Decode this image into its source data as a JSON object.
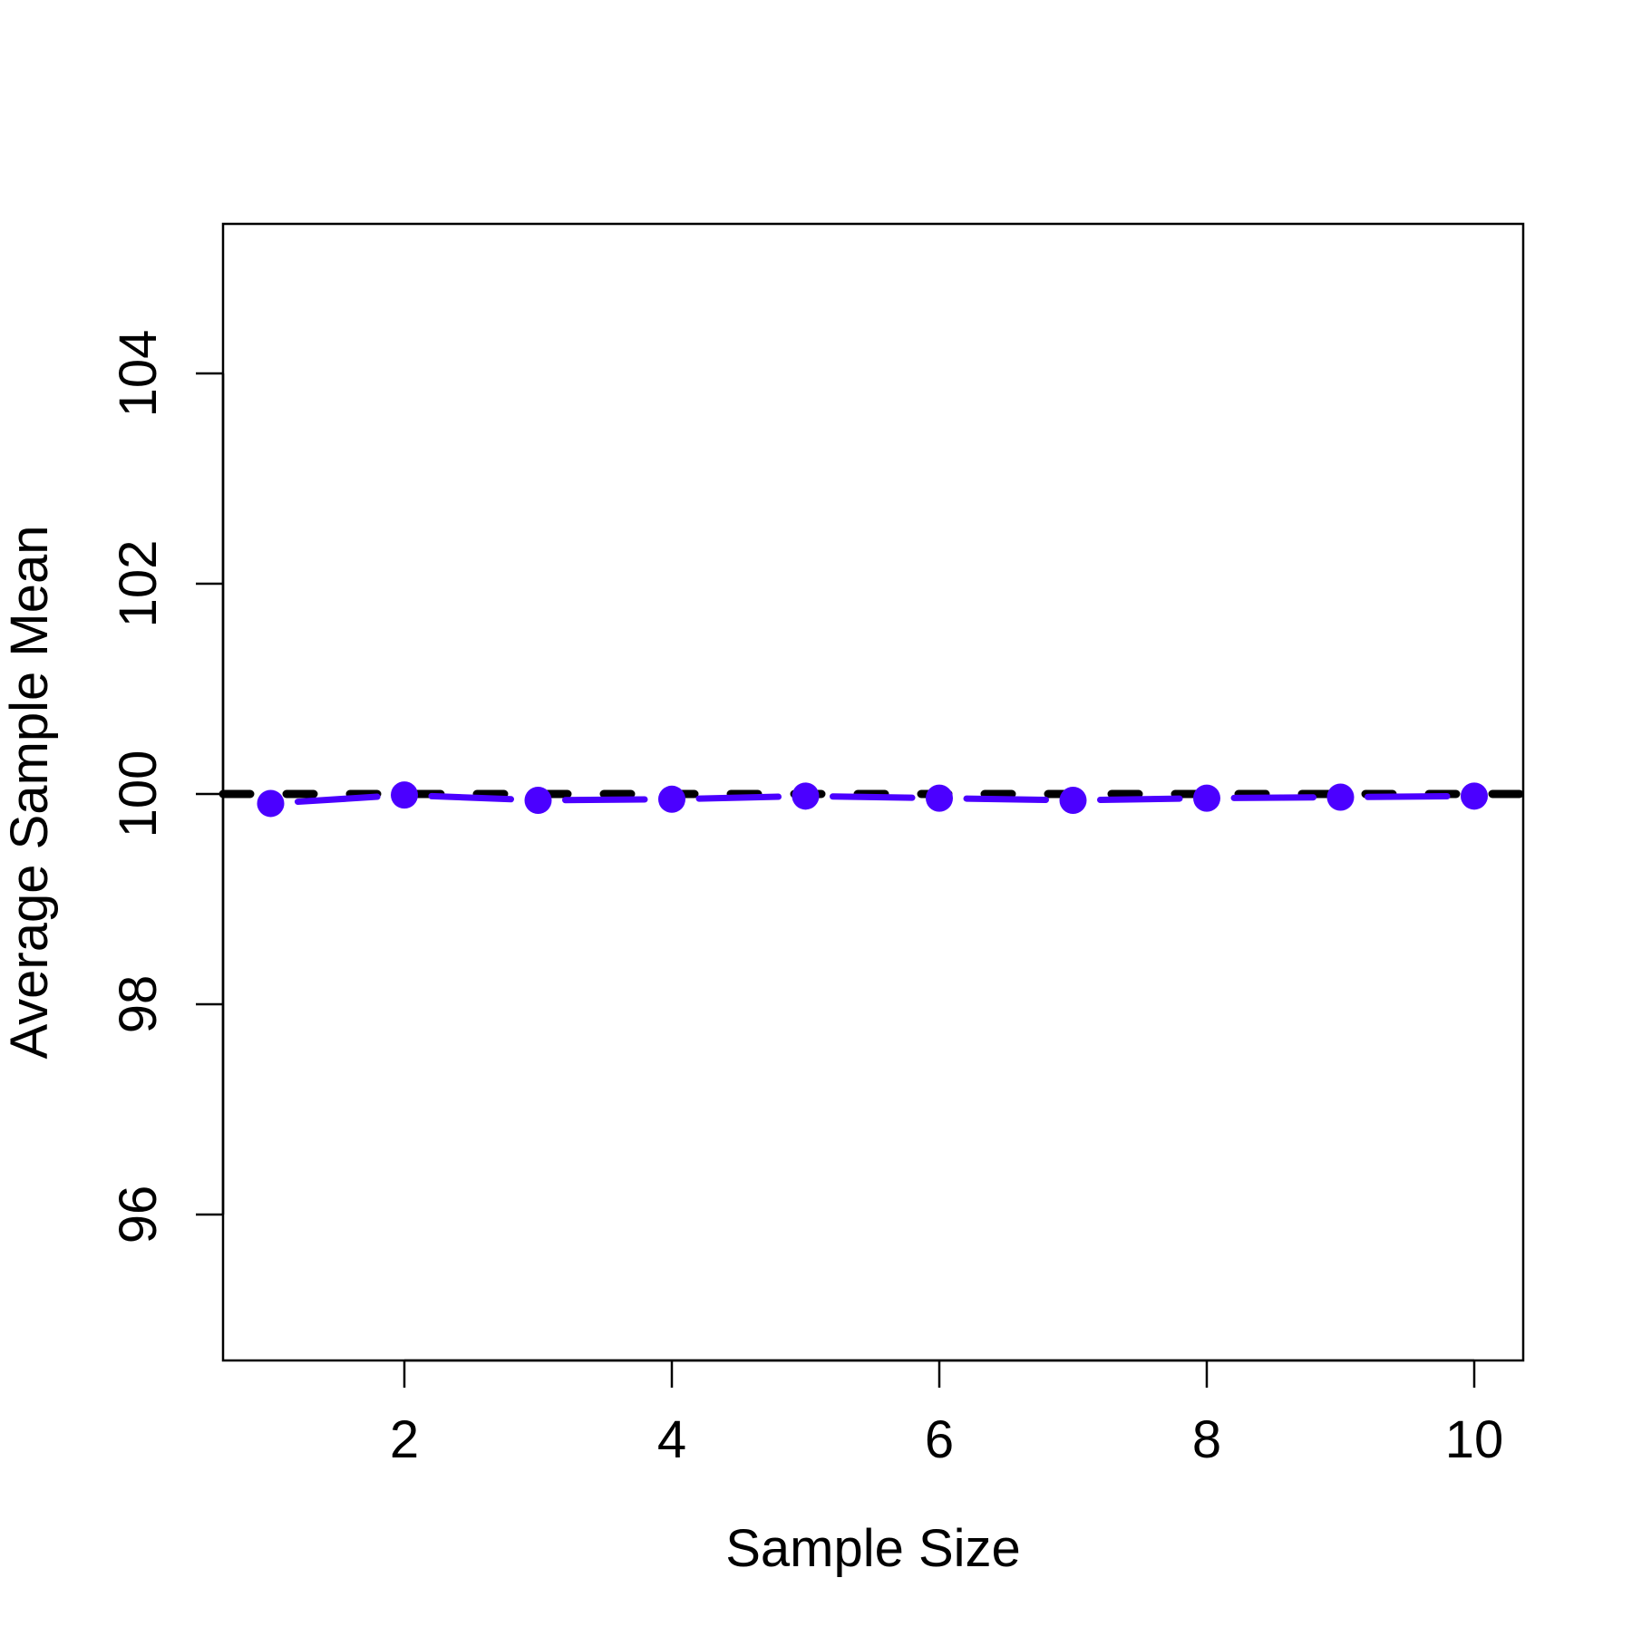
{
  "chart_data": {
    "type": "line",
    "title": "",
    "xlabel": "Sample Size",
    "ylabel": "Average Sample Mean",
    "x": [
      1,
      2,
      3,
      4,
      5,
      6,
      7,
      8,
      9,
      10
    ],
    "series": [
      {
        "name": "Average Sample Mean",
        "color": "#4B00FF",
        "style": "line+points",
        "values": [
          99.91,
          99.99,
          99.94,
          99.95,
          99.98,
          99.96,
          99.94,
          99.96,
          99.97,
          99.98
        ]
      }
    ],
    "reference_line": {
      "y": 100,
      "color": "#000000",
      "style": "dashed"
    },
    "xlim": [
      0.68,
      10.37
    ],
    "ylim": [
      94.6,
      105.4
    ],
    "xticks": [
      2,
      4,
      6,
      8,
      10
    ],
    "yticks": [
      96,
      98,
      100,
      102,
      104
    ],
    "xtick_labels": [
      "2",
      "4",
      "6",
      "8",
      "10"
    ],
    "ytick_labels": [
      "96",
      "98",
      "100",
      "102",
      "104"
    ],
    "grid": false,
    "legend": null
  }
}
